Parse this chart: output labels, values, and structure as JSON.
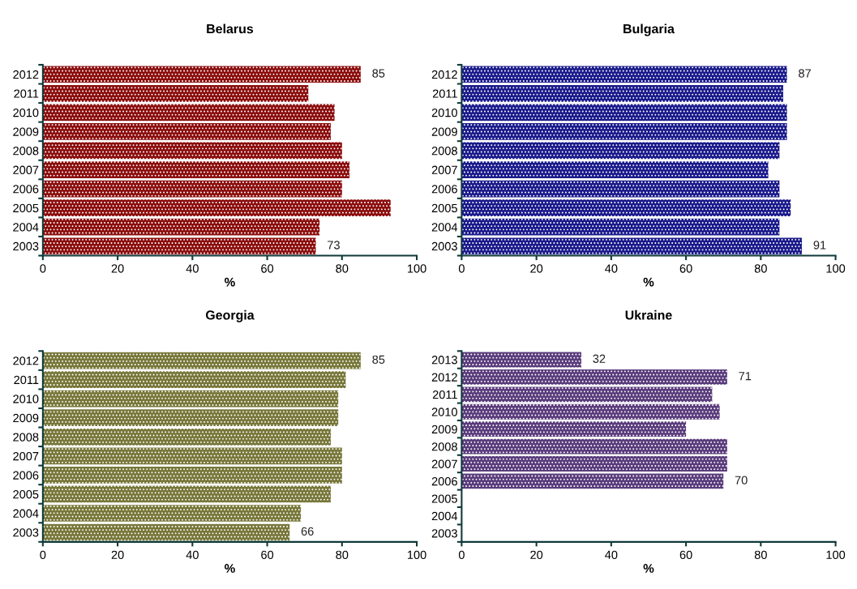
{
  "chart_data": [
    {
      "type": "bar",
      "orientation": "horizontal",
      "title": "Belarus",
      "xlabel": "%",
      "categories": [
        "2012",
        "2011",
        "2010",
        "2009",
        "2008",
        "2007",
        "2006",
        "2005",
        "2004",
        "2003"
      ],
      "values": [
        85,
        71,
        78,
        77,
        80,
        82,
        80,
        93,
        74,
        73
      ],
      "value_labels": [
        "85",
        null,
        null,
        null,
        null,
        null,
        null,
        null,
        null,
        "73"
      ],
      "color": "#8b0d0d",
      "xlim": [
        0,
        100
      ],
      "xticks": [
        0,
        20,
        40,
        60,
        80,
        100
      ],
      "grid": false
    },
    {
      "type": "bar",
      "orientation": "horizontal",
      "title": "Bulgaria",
      "xlabel": "%",
      "categories": [
        "2012",
        "2011",
        "2010",
        "2009",
        "2008",
        "2007",
        "2006",
        "2005",
        "2004",
        "2003"
      ],
      "values": [
        87,
        86,
        87,
        87,
        85,
        82,
        85,
        88,
        85,
        91
      ],
      "value_labels": [
        "87",
        null,
        null,
        null,
        null,
        null,
        null,
        null,
        null,
        "91"
      ],
      "color": "#1a1a8c",
      "xlim": [
        0,
        100
      ],
      "xticks": [
        0,
        20,
        40,
        60,
        80,
        100
      ],
      "grid": false
    },
    {
      "type": "bar",
      "orientation": "horizontal",
      "title": "Georgia",
      "xlabel": "%",
      "categories": [
        "2012",
        "2011",
        "2010",
        "2009",
        "2008",
        "2007",
        "2006",
        "2005",
        "2004",
        "2003"
      ],
      "values": [
        85,
        81,
        79,
        79,
        77,
        80,
        80,
        77,
        69,
        66
      ],
      "value_labels": [
        "85",
        null,
        null,
        null,
        null,
        null,
        null,
        null,
        null,
        "66"
      ],
      "color": "#77773a",
      "xlim": [
        0,
        100
      ],
      "xticks": [
        0,
        20,
        40,
        60,
        80,
        100
      ],
      "grid": false
    },
    {
      "type": "bar",
      "orientation": "horizontal",
      "title": "Ukraine",
      "xlabel": "%",
      "categories": [
        "2013",
        "2012",
        "2011",
        "2010",
        "2009",
        "2008",
        "2007",
        "2006",
        "2005",
        "2004",
        "2003"
      ],
      "values": [
        32,
        71,
        67,
        69,
        60,
        71,
        71,
        70,
        null,
        null,
        null
      ],
      "value_labels": [
        "32",
        "71",
        null,
        null,
        null,
        null,
        null,
        "70",
        null,
        null,
        null
      ],
      "color": "#5a3c7c",
      "xlim": [
        0,
        100
      ],
      "xticks": [
        0,
        20,
        40,
        60,
        80,
        100
      ],
      "grid": false
    }
  ]
}
